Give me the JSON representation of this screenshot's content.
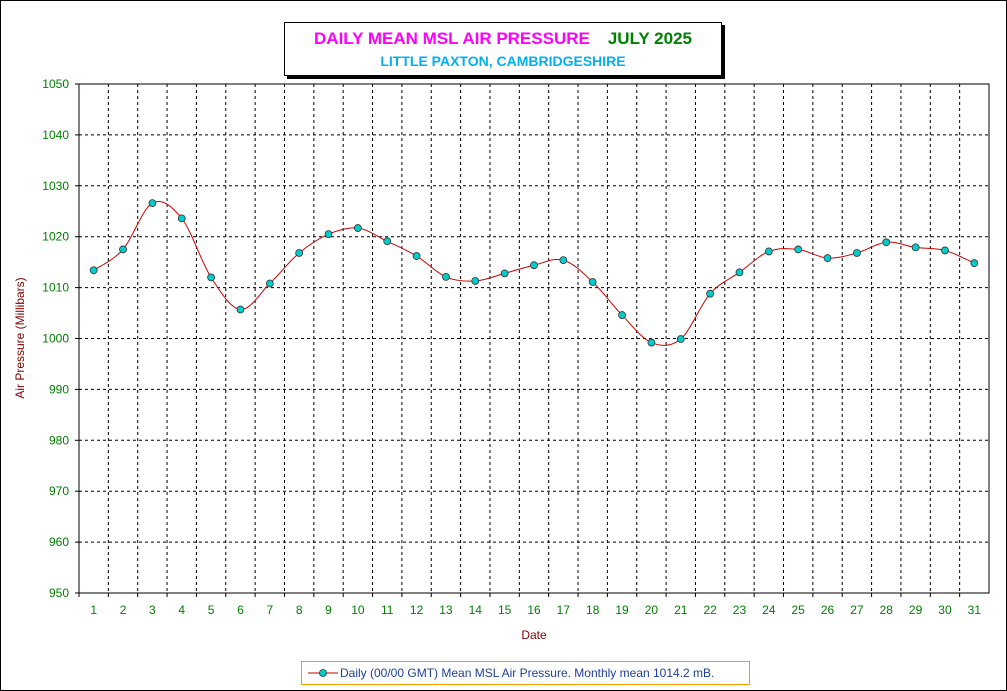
{
  "chart_data": {
    "type": "line",
    "title": "DAILY MEAN MSL AIR PRESSURE",
    "title_period": "JULY 2025",
    "subtitle": "LITTLE PAXTON, CAMBRIDGESHIRE",
    "xlabel": "Date",
    "ylabel": "Air Pressure (Millibars)",
    "x": [
      1,
      2,
      3,
      4,
      5,
      6,
      7,
      8,
      9,
      10,
      11,
      12,
      13,
      14,
      15,
      16,
      17,
      18,
      19,
      20,
      21,
      22,
      23,
      24,
      25,
      26,
      27,
      28,
      29,
      30,
      31
    ],
    "ylim": [
      950,
      1050
    ],
    "yticks": [
      950,
      960,
      970,
      980,
      990,
      1000,
      1010,
      1020,
      1030,
      1040,
      1050
    ],
    "grid": true,
    "legend_position": "bottom-center",
    "series": [
      {
        "name": "Daily (00/00 GMT) Mean MSL Air Pressure. Monthly mean 1014.2 mB.",
        "values": [
          1013.4,
          1017.5,
          1026.6,
          1023.6,
          1012.0,
          1005.7,
          1010.8,
          1016.8,
          1020.5,
          1021.7,
          1019.1,
          1016.2,
          1012.1,
          1011.3,
          1012.8,
          1014.4,
          1015.4,
          1011.1,
          1004.6,
          999.2,
          999.9,
          1008.8,
          1013.0,
          1017.1,
          1017.5,
          1015.8,
          1016.8,
          1018.9,
          1017.9,
          1017.3,
          1014.8
        ],
        "line_color": "#cc0000",
        "marker_color": "#00cccc"
      }
    ],
    "colors": {
      "title": "#ff00ff",
      "title_period": "#008000",
      "subtitle": "#00b0f0",
      "tick_labels": "#008000",
      "axis_labels": "#800000",
      "legend_text": "#1f3f9f",
      "legend_border": "#ff9900"
    }
  }
}
